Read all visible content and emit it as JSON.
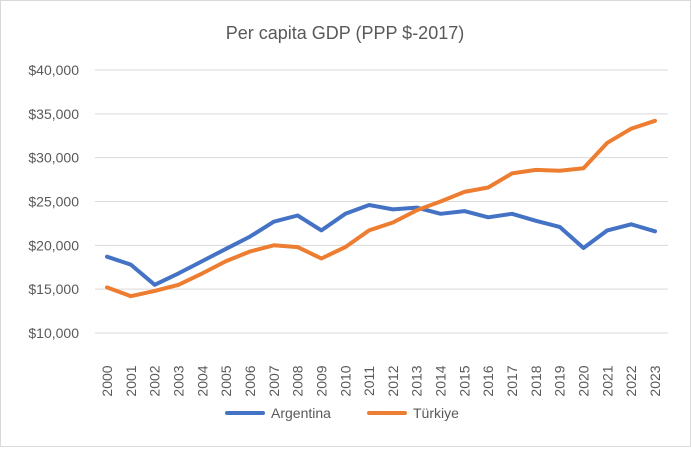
{
  "chart_data": {
    "type": "line",
    "title": "Per capita GDP (PPP $-2017)",
    "xlabel": "",
    "ylabel": "",
    "x": [
      "2000",
      "2001",
      "2002",
      "2003",
      "2004",
      "2005",
      "2006",
      "2007",
      "2008",
      "2009",
      "2010",
      "2011",
      "2012",
      "2013",
      "2014",
      "2015",
      "2016",
      "2017",
      "2018",
      "2019",
      "2020",
      "2021",
      "2022",
      "2023"
    ],
    "ylim": [
      10000,
      40000
    ],
    "yticks": [
      10000,
      15000,
      20000,
      25000,
      30000,
      35000,
      40000
    ],
    "ytick_labels": [
      "$10,000",
      "$15,000",
      "$20,000",
      "$25,000",
      "$30,000",
      "$35,000",
      "$40,000"
    ],
    "grid": true,
    "legend_position": "bottom",
    "series": [
      {
        "name": "Argentina",
        "color": "#4472C4",
        "values": [
          18700,
          17800,
          15500,
          16800,
          18200,
          19600,
          21000,
          22700,
          23400,
          21700,
          23600,
          24600,
          24100,
          24300,
          23600,
          23900,
          23200,
          23600,
          22800,
          22100,
          19700,
          21700,
          22400,
          21600
        ]
      },
      {
        "name": "Türkiye",
        "color": "#ED7D31",
        "values": [
          15200,
          14200,
          14800,
          15500,
          16800,
          18200,
          19300,
          20000,
          19800,
          18500,
          19800,
          21700,
          22600,
          24000,
          25000,
          26100,
          26600,
          28200,
          28600,
          28500,
          28800,
          31700,
          33300,
          34200
        ]
      }
    ]
  }
}
